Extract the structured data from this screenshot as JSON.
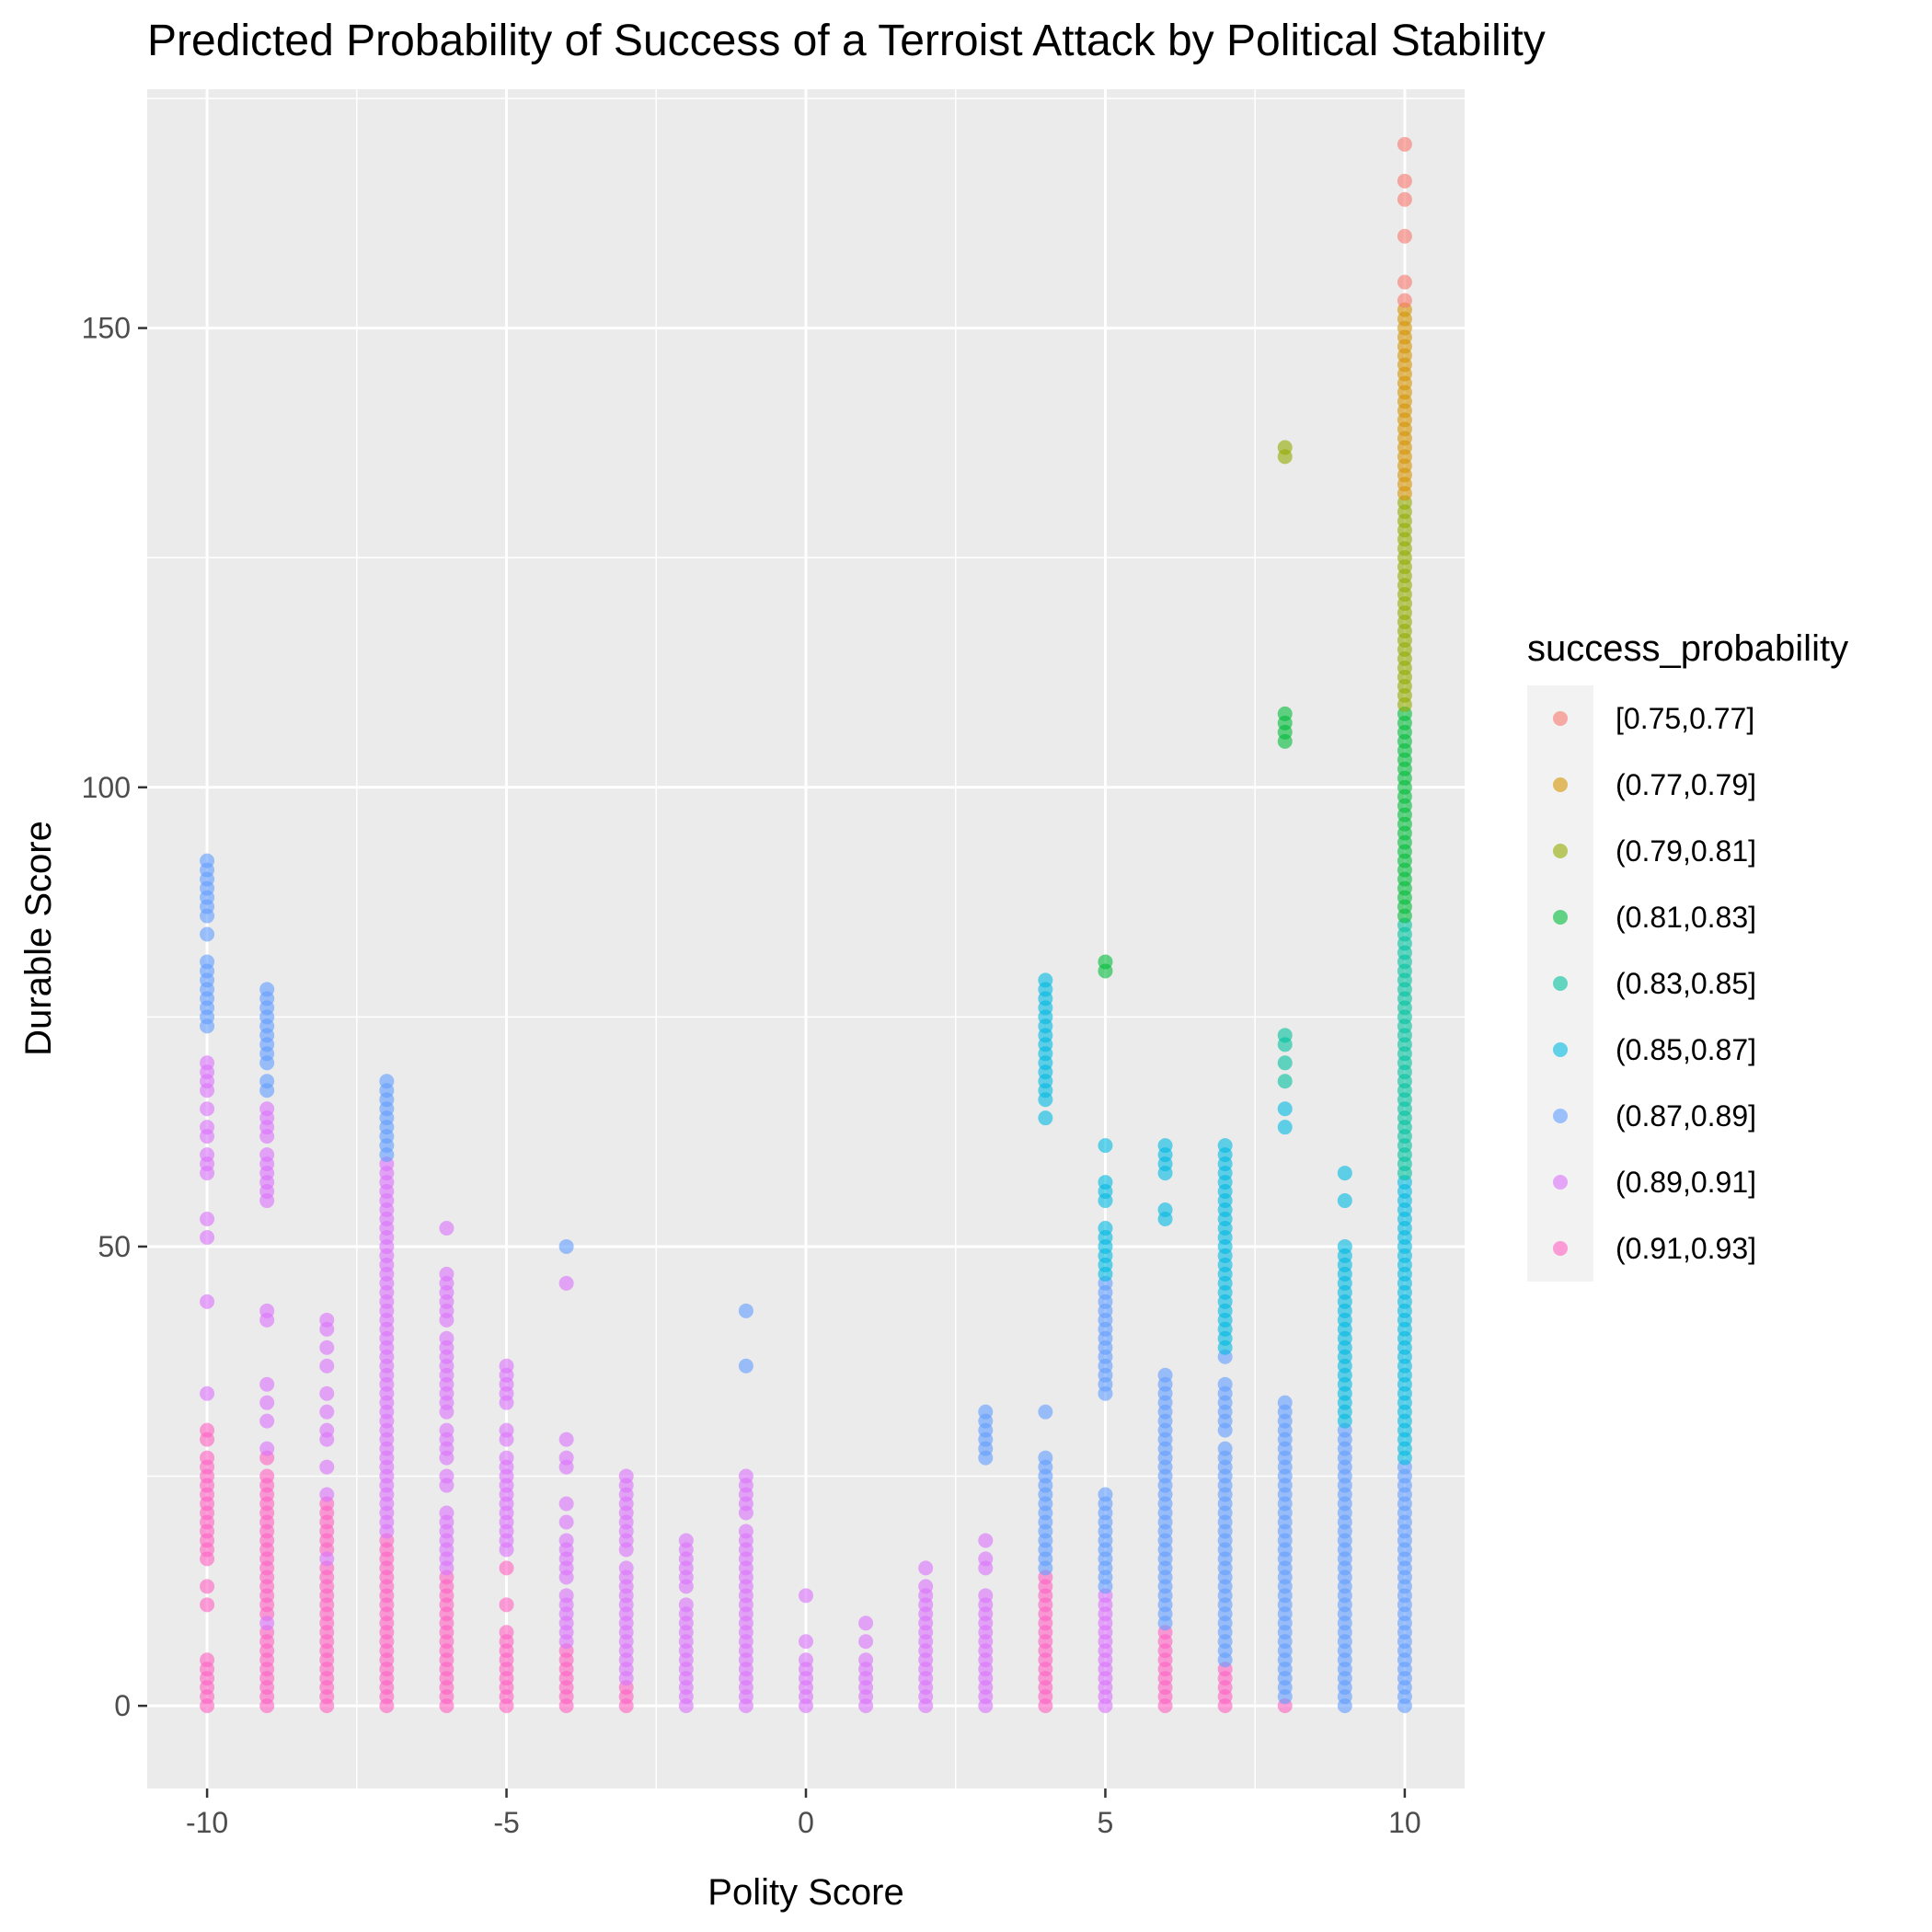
{
  "chart_data": {
    "type": "scatter",
    "title": "Predicted Probability of Success of a Terroist Attack by Political Stability",
    "xlabel": "Polity Score",
    "ylabel": "Durable Score",
    "xlim": [
      -11,
      11
    ],
    "ylim": [
      -9,
      176
    ],
    "x_ticks": [
      -10,
      -5,
      0,
      5,
      10
    ],
    "y_ticks": [
      0,
      50,
      100,
      150
    ],
    "x_tick_labels": [
      "-10",
      "-5",
      "0",
      "5",
      "10"
    ],
    "y_tick_labels": [
      "0",
      "50",
      "100",
      "150"
    ],
    "grid": true,
    "legend": {
      "title": "success_probability",
      "placement": "right",
      "entries": [
        {
          "label": "[0.75,0.77]",
          "color": "#F8766D"
        },
        {
          "label": "(0.77,0.79]",
          "color": "#D39200"
        },
        {
          "label": "(0.79,0.81]",
          "color": "#93AA00"
        },
        {
          "label": "(0.81,0.83]",
          "color": "#00BA38"
        },
        {
          "label": "(0.83,0.85]",
          "color": "#00C19F"
        },
        {
          "label": "(0.85,0.87]",
          "color": "#00B9E3"
        },
        {
          "label": "(0.87,0.89]",
          "color": "#619CFF"
        },
        {
          "label": "(0.89,0.91]",
          "color": "#DB72FB"
        },
        {
          "label": "(0.91,0.93]",
          "color": "#FF61C3"
        }
      ]
    },
    "series": [
      {
        "x": -10,
        "class": 8,
        "y": [
          0,
          1,
          2,
          3,
          4,
          5,
          16,
          17,
          18,
          19,
          20,
          21,
          22,
          23,
          24,
          25,
          26,
          27,
          29,
          30,
          11,
          13
        ]
      },
      {
        "x": -10,
        "class": 7,
        "y": [
          34,
          44,
          51,
          53,
          58,
          59,
          60,
          62,
          63,
          65,
          67,
          68,
          69,
          70
        ]
      },
      {
        "x": -10,
        "class": 6,
        "y": [
          74,
          75,
          76,
          77,
          78,
          79,
          80,
          81,
          84,
          86,
          87,
          88,
          89,
          90,
          91,
          92
        ]
      },
      {
        "x": -9,
        "class": 8,
        "y": [
          0,
          1,
          2,
          3,
          4,
          5,
          6,
          7,
          8,
          10,
          11,
          12,
          13,
          14,
          15,
          16,
          17,
          18,
          19,
          20,
          21,
          22,
          23,
          24,
          25,
          27
        ]
      },
      {
        "x": -9,
        "class": 7,
        "y": [
          9,
          28,
          31,
          33,
          35,
          42,
          43,
          55,
          56,
          57,
          58,
          59,
          60,
          62,
          63,
          64,
          65
        ]
      },
      {
        "x": -9,
        "class": 6,
        "y": [
          67,
          68,
          70,
          71,
          72,
          73,
          74,
          75,
          76,
          77,
          78
        ]
      },
      {
        "x": -8,
        "class": 8,
        "y": [
          0,
          1,
          2,
          3,
          4,
          5,
          6,
          7,
          8,
          9,
          10,
          11,
          12,
          13,
          14,
          15,
          17,
          18,
          19,
          20,
          21,
          22
        ]
      },
      {
        "x": -8,
        "class": 7,
        "y": [
          16,
          23,
          26,
          29,
          30,
          32,
          34,
          37,
          39,
          41,
          42
        ]
      },
      {
        "x": -7,
        "class": 8,
        "y": [
          0,
          1,
          2,
          3,
          4,
          5,
          6,
          7,
          8,
          9,
          10,
          11,
          12,
          13,
          14,
          15,
          16,
          17,
          18
        ]
      },
      {
        "x": -7,
        "class": 7,
        "y": [
          19,
          20,
          21,
          22,
          23,
          24,
          25,
          26,
          27,
          28,
          29,
          30,
          31,
          32,
          33,
          34,
          35,
          36,
          37,
          38,
          39,
          40,
          41,
          42,
          43,
          44,
          45,
          46,
          47,
          48,
          49,
          50,
          51,
          52,
          53,
          54,
          55,
          56,
          57,
          58,
          59
        ]
      },
      {
        "x": -7,
        "class": 6,
        "y": [
          60,
          61,
          62,
          63,
          64,
          65,
          66,
          67,
          68
        ]
      },
      {
        "x": -6,
        "class": 8,
        "y": [
          0,
          1,
          2,
          3,
          4,
          5,
          6,
          7,
          8,
          9,
          10,
          11,
          12,
          13,
          14
        ]
      },
      {
        "x": -6,
        "class": 7,
        "y": [
          15,
          16,
          17,
          18,
          19,
          20,
          21,
          24,
          25,
          27,
          28,
          29,
          30,
          32,
          33,
          34,
          35,
          36,
          37,
          38,
          39,
          40,
          42,
          43,
          44,
          45,
          46,
          47,
          52
        ]
      },
      {
        "x": -5,
        "class": 8,
        "y": [
          0,
          1,
          2,
          3,
          4,
          5,
          6,
          7,
          8,
          11,
          15
        ]
      },
      {
        "x": -5,
        "class": 7,
        "y": [
          17,
          18,
          19,
          20,
          21,
          22,
          23,
          24,
          25,
          26,
          27,
          29,
          30,
          33,
          34,
          35,
          36,
          37
        ]
      },
      {
        "x": -4,
        "class": 8,
        "y": [
          0,
          1,
          2,
          3,
          4,
          5,
          6
        ]
      },
      {
        "x": -4,
        "class": 7,
        "y": [
          7,
          8,
          9,
          10,
          11,
          12,
          14,
          15,
          16,
          17,
          18,
          20,
          22,
          26,
          27,
          29,
          46
        ]
      },
      {
        "x": -4,
        "class": 6,
        "y": [
          50
        ]
      },
      {
        "x": -3,
        "class": 8,
        "y": [
          0,
          1,
          2
        ]
      },
      {
        "x": -3,
        "class": 7,
        "y": [
          3,
          4,
          5,
          6,
          7,
          8,
          9,
          10,
          11,
          12,
          13,
          14,
          15,
          17,
          18,
          19,
          20,
          21,
          22,
          23,
          24,
          25
        ]
      },
      {
        "x": -2,
        "class": 7,
        "y": [
          0,
          1,
          2,
          3,
          4,
          5,
          6,
          7,
          8,
          9,
          10,
          11,
          13,
          14,
          15,
          16,
          17,
          18
        ]
      },
      {
        "x": -1,
        "class": 7,
        "y": [
          0,
          1,
          2,
          3,
          4,
          5,
          6,
          7,
          8,
          9,
          10,
          11,
          12,
          13,
          14,
          15,
          16,
          17,
          18,
          19,
          21,
          22,
          23,
          24,
          25
        ]
      },
      {
        "x": -1,
        "class": 6,
        "y": [
          37,
          43
        ]
      },
      {
        "x": 0,
        "class": 7,
        "y": [
          0,
          1,
          2,
          3,
          4,
          5,
          7,
          12
        ]
      },
      {
        "x": 1,
        "class": 7,
        "y": [
          0,
          1,
          2,
          3,
          4,
          5,
          7,
          9
        ]
      },
      {
        "x": 2,
        "class": 7,
        "y": [
          0,
          1,
          2,
          3,
          4,
          5,
          6,
          7,
          8,
          9,
          10,
          11,
          12,
          13,
          15
        ]
      },
      {
        "x": 3,
        "class": 7,
        "y": [
          0,
          1,
          2,
          3,
          4,
          5,
          6,
          7,
          8,
          9,
          10,
          11,
          12,
          15,
          16,
          18
        ]
      },
      {
        "x": 3,
        "class": 6,
        "y": [
          27,
          28,
          29,
          30,
          31,
          32
        ]
      },
      {
        "x": 4,
        "class": 8,
        "y": [
          0,
          1,
          2,
          3,
          4,
          5,
          6,
          7,
          8,
          9,
          10,
          11,
          12,
          13,
          14
        ]
      },
      {
        "x": 4,
        "class": 6,
        "y": [
          15,
          16,
          17,
          18,
          19,
          20,
          21,
          22,
          23,
          24,
          25,
          26,
          27,
          32
        ]
      },
      {
        "x": 4,
        "class": 5,
        "y": [
          64,
          66,
          67,
          68,
          69,
          70,
          71,
          72,
          73,
          74,
          75,
          76,
          77,
          78,
          79
        ]
      },
      {
        "x": 5,
        "class": 7,
        "y": [
          0,
          1,
          2,
          3,
          4,
          5,
          6,
          7,
          8,
          9,
          10,
          11,
          12
        ]
      },
      {
        "x": 5,
        "class": 6,
        "y": [
          13,
          14,
          15,
          16,
          17,
          18,
          19,
          20,
          21,
          22,
          23,
          34,
          35,
          36,
          37,
          38,
          39,
          40,
          41,
          42,
          43,
          44,
          45,
          46
        ]
      },
      {
        "x": 5,
        "class": 5,
        "y": [
          47,
          48,
          49,
          50,
          51,
          52,
          55,
          56,
          57,
          61
        ]
      },
      {
        "x": 5,
        "class": 3,
        "y": [
          80,
          81
        ]
      },
      {
        "x": 6,
        "class": 8,
        "y": [
          0,
          1,
          2,
          3,
          4,
          5,
          6,
          7,
          8
        ]
      },
      {
        "x": 6,
        "class": 6,
        "y": [
          9,
          10,
          11,
          12,
          13,
          14,
          15,
          16,
          17,
          18,
          19,
          20,
          21,
          22,
          23,
          24,
          25,
          26,
          27,
          28,
          29,
          30,
          31,
          32,
          33,
          34,
          35,
          36
        ]
      },
      {
        "x": 6,
        "class": 5,
        "y": [
          53,
          54,
          58,
          59,
          60,
          61
        ]
      },
      {
        "x": 7,
        "class": 8,
        "y": [
          0,
          1,
          2,
          3,
          4
        ]
      },
      {
        "x": 7,
        "class": 6,
        "y": [
          5,
          6,
          7,
          8,
          9,
          10,
          11,
          12,
          13,
          14,
          15,
          16,
          17,
          18,
          19,
          20,
          21,
          22,
          23,
          24,
          25,
          26,
          27,
          28,
          30,
          31,
          32,
          33,
          34,
          35,
          38
        ]
      },
      {
        "x": 7,
        "class": 5,
        "y": [
          39,
          40,
          41,
          42,
          43,
          44,
          45,
          46,
          47,
          48,
          49,
          50,
          51,
          52,
          53,
          54,
          55,
          56,
          57,
          58,
          59,
          60,
          61
        ]
      },
      {
        "x": 8,
        "class": 8,
        "y": [
          0
        ]
      },
      {
        "x": 8,
        "class": 6,
        "y": [
          1,
          2,
          3,
          4,
          5,
          6,
          7,
          8,
          9,
          10,
          11,
          12,
          13,
          14,
          15,
          16,
          17,
          18,
          19,
          20,
          21,
          22,
          23,
          24,
          25,
          26,
          27,
          28,
          29,
          30,
          31,
          32,
          33
        ]
      },
      {
        "x": 8,
        "class": 5,
        "y": [
          63,
          65
        ]
      },
      {
        "x": 8,
        "class": 4,
        "y": [
          68,
          70,
          72,
          73
        ]
      },
      {
        "x": 8,
        "class": 3,
        "y": [
          105,
          106,
          107,
          108
        ]
      },
      {
        "x": 8,
        "class": 2,
        "y": [
          136,
          137
        ]
      },
      {
        "x": 9,
        "class": 6,
        "y": [
          0,
          1,
          2,
          3,
          4,
          5,
          6,
          7,
          8,
          9,
          10,
          11,
          12,
          13,
          14,
          15,
          16,
          17,
          18,
          19,
          20,
          21,
          22,
          23,
          24,
          25,
          26,
          27,
          28,
          29,
          30
        ]
      },
      {
        "x": 9,
        "class": 5,
        "y": [
          31,
          32,
          33,
          34,
          35,
          36,
          37,
          38,
          39,
          40,
          41,
          42,
          43,
          44,
          45,
          46,
          47,
          48,
          49,
          50,
          55,
          58
        ]
      },
      {
        "x": 10,
        "class": 6,
        "y": [
          0,
          1,
          2,
          3,
          4,
          5,
          6,
          7,
          8,
          9,
          10,
          11,
          12,
          13,
          14,
          15,
          16,
          17,
          18,
          19,
          20,
          21,
          22,
          23,
          24,
          25,
          26
        ]
      },
      {
        "x": 10,
        "class": 5,
        "y": [
          27,
          28,
          29,
          30,
          31,
          32,
          33,
          34,
          35,
          36,
          37,
          38,
          39,
          40,
          41,
          42,
          43,
          44,
          45,
          46,
          47,
          48,
          49,
          50,
          51,
          52,
          53,
          54,
          55,
          56,
          57
        ]
      },
      {
        "x": 10,
        "class": 4,
        "y": [
          58,
          59,
          60,
          61,
          62,
          63,
          64,
          65,
          66,
          67,
          68,
          69,
          70,
          71,
          72,
          73,
          74,
          75,
          76,
          77,
          78,
          79,
          80,
          81,
          82,
          83,
          84,
          85
        ]
      },
      {
        "x": 10,
        "class": 3,
        "y": [
          86,
          87,
          88,
          89,
          90,
          91,
          92,
          93,
          94,
          95,
          96,
          97,
          98,
          99,
          100,
          101,
          102,
          103,
          104,
          105,
          106,
          107,
          108
        ]
      },
      {
        "x": 10,
        "class": 2,
        "y": [
          109,
          110,
          111,
          112,
          113,
          114,
          115,
          116,
          117,
          118,
          119,
          120,
          121,
          122,
          123,
          124,
          125,
          126,
          127,
          128,
          129,
          130,
          131
        ]
      },
      {
        "x": 10,
        "class": 1,
        "y": [
          132,
          133,
          134,
          135,
          136,
          137,
          138,
          139,
          140,
          141,
          142,
          143,
          144,
          145,
          146,
          147,
          148,
          149,
          150,
          151,
          152
        ]
      },
      {
        "x": 10,
        "class": 0,
        "y": [
          153,
          155,
          160,
          164,
          166,
          170
        ]
      }
    ]
  }
}
